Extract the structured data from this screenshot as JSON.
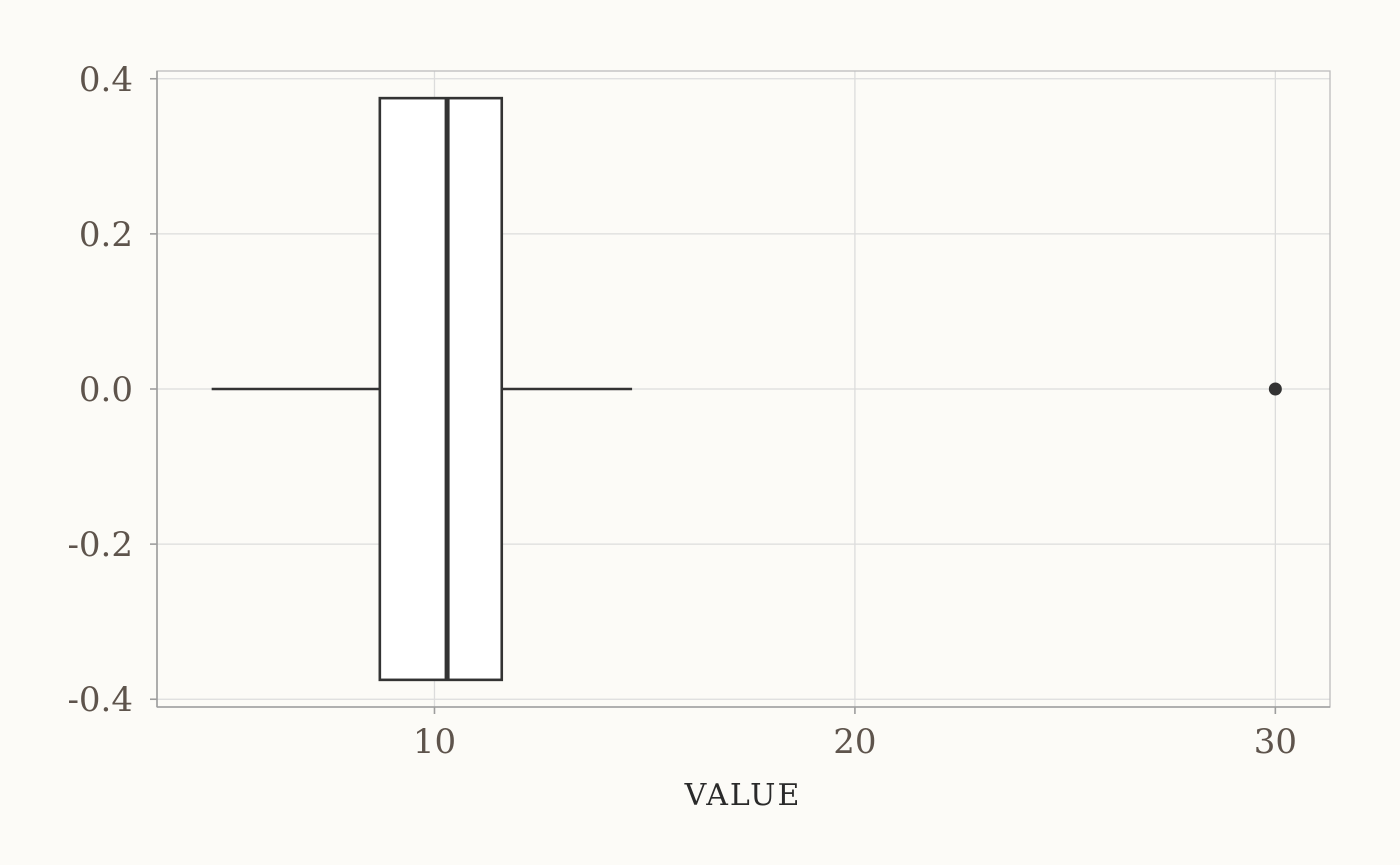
{
  "chart_data": {
    "type": "boxplot",
    "title": "",
    "xlabel": "VALUE",
    "ylabel": "",
    "xlim": [
      3.4,
      31.3
    ],
    "ylim": [
      -0.41,
      0.41
    ],
    "x_ticks": [
      10,
      20,
      30
    ],
    "x_tick_labels": [
      "10",
      "20",
      "30"
    ],
    "y_ticks": [
      -0.4,
      -0.2,
      0.0,
      0.2,
      0.4
    ],
    "y_tick_labels": [
      "-0.4",
      "-0.2",
      "0.0",
      "0.2",
      "0.4"
    ],
    "grid": true,
    "orientation": "horizontal",
    "box": {
      "y": 0.0,
      "half_width": 0.375,
      "whisker_low": 4.7,
      "q1": 8.7,
      "median": 10.3,
      "q3": 11.6,
      "whisker_high": 14.7,
      "outliers": [
        30.0
      ]
    },
    "colors": {
      "background": "#fcfbf7",
      "box_fill": "#ffffff",
      "box_stroke": "#333333",
      "tick_text": "#5e544c",
      "grid": "#dcdcdc"
    }
  }
}
